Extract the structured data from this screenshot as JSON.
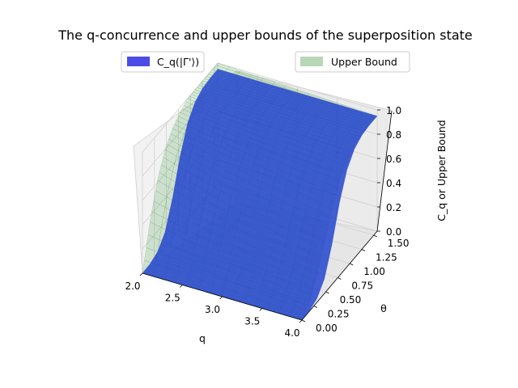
{
  "chart_data": {
    "type": "surface3d",
    "title": "The q-concurrence and upper bounds of the superposition state",
    "xlabel": "q",
    "ylabel": "θ",
    "zlabel": "C_q or Upper Bound",
    "xlim": [
      2.0,
      4.0
    ],
    "ylim": [
      0.0,
      1.5708
    ],
    "zlim": [
      0.0,
      1.0
    ],
    "xticks": [
      "2.0",
      "2.5",
      "3.0",
      "3.5",
      "4.0"
    ],
    "yticks": [
      "0.00",
      "0.25",
      "0.50",
      "0.75",
      "1.00",
      "1.25",
      "1.50"
    ],
    "zticks": [
      "0.0",
      "0.2",
      "0.4",
      "0.6",
      "0.8",
      "1.0"
    ],
    "grid": true,
    "legend_placement": "top",
    "series": [
      {
        "name": "C_q(|Γ'⟩)",
        "color": "#0000dd",
        "alpha": 0.7,
        "theta": [
          0.0,
          0.157,
          0.314,
          0.471,
          0.628,
          0.785,
          0.942,
          1.1,
          1.257,
          1.414,
          1.571
        ],
        "values_vs_theta": [
          0.0,
          0.003,
          0.03,
          0.12,
          0.33,
          0.6,
          0.8,
          0.9,
          0.94,
          0.95,
          0.95
        ],
        "note_q": "approximately constant along q"
      },
      {
        "name": "Upper Bound",
        "color": "#4a9a4a",
        "alpha": 0.4,
        "theta": [
          0.0,
          0.157,
          0.314,
          0.471,
          0.628,
          0.785,
          0.942,
          1.1,
          1.257,
          1.414,
          1.571
        ],
        "values_at_q2": [
          0.0,
          0.35,
          0.62,
          0.8,
          0.9,
          0.96,
          1.0,
          1.0,
          1.0,
          1.0,
          1.0
        ],
        "values_at_q4": [
          0.0,
          0.08,
          0.22,
          0.42,
          0.62,
          0.78,
          0.88,
          0.93,
          0.95,
          0.95,
          0.95
        ]
      }
    ]
  }
}
